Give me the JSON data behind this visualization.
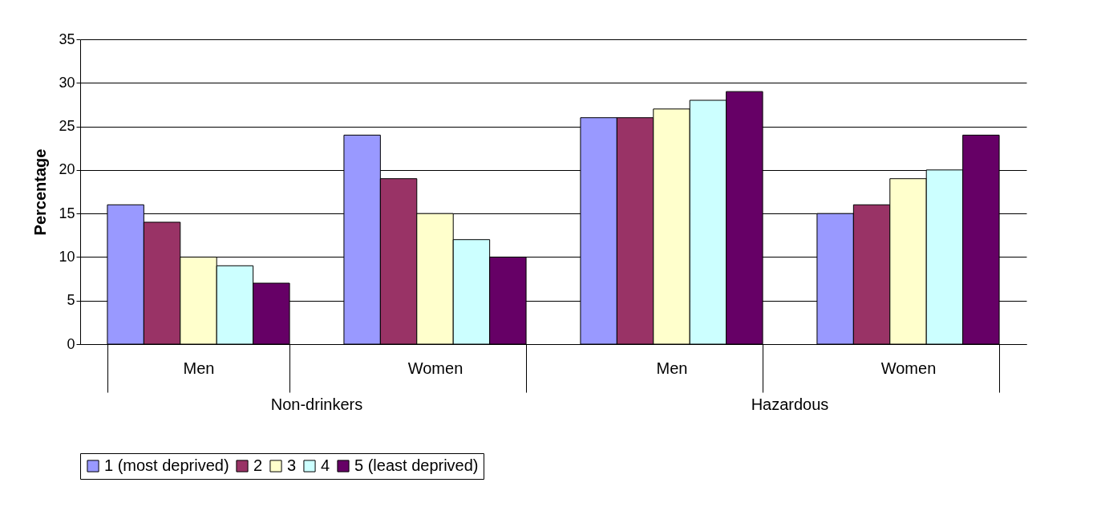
{
  "chart_data": {
    "type": "bar",
    "ylabel": "Percentage",
    "categories": [
      "Men",
      "Women",
      "Men",
      "Women"
    ],
    "annotations": [
      "Non-drinkers",
      "Hazardous"
    ],
    "ylim": [
      0,
      35
    ],
    "yticks": [
      0,
      5,
      10,
      15,
      20,
      25,
      30,
      35
    ],
    "grid": "y",
    "legend": "bottom",
    "series": [
      {
        "name": "1 (most deprived)",
        "color": "#9999ff",
        "values": [
          16,
          24,
          26,
          15
        ]
      },
      {
        "name": "2",
        "color": "#993366",
        "values": [
          14,
          19,
          26,
          16
        ]
      },
      {
        "name": "3",
        "color": "#ffffcc",
        "values": [
          10,
          15,
          27,
          19
        ]
      },
      {
        "name": "4",
        "color": "#ccffff",
        "values": [
          9,
          12,
          28,
          20
        ]
      },
      {
        "name": "5 (least deprived)",
        "color": "#660066",
        "values": [
          7,
          10,
          29,
          24
        ]
      }
    ]
  }
}
